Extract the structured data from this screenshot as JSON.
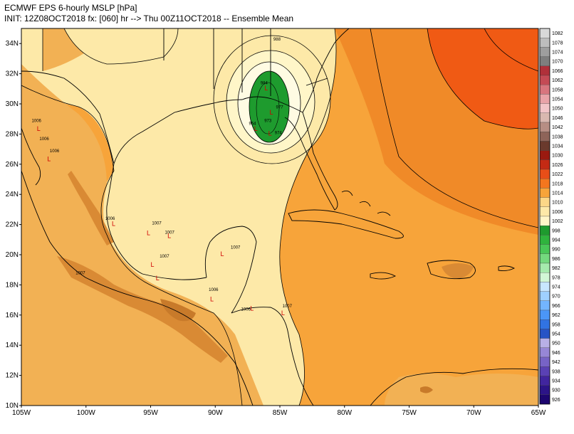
{
  "header": {
    "title": "ECMWF EPS 6-hourly MSLP [hPa]",
    "subtitle": "INIT: 12Z08OCT2018 fx: [060] hr --> Thu 00Z11OCT2018 -- Ensemble Mean"
  },
  "map": {
    "lat_labels": [
      "34N",
      "32N",
      "30N",
      "28N",
      "26N",
      "24N",
      "22N",
      "20N",
      "18N",
      "16N",
      "14N",
      "12N",
      "10N"
    ],
    "lon_labels": [
      "105W",
      "100W",
      "95W",
      "90W",
      "85W",
      "80W",
      "75W",
      "70W",
      "65W"
    ],
    "colors": {
      "land_orange": "#f2b154",
      "ocean_light": "#fde9a8",
      "pale": "#fff6c8",
      "gulf_orange": "#f7a43a",
      "deep_orange": "#f07e1f",
      "red_orange": "#f05a14",
      "low_green": "#1e9b2e",
      "terrain_brown": "#d98a34"
    }
  },
  "colorbar": {
    "levels": [
      "1082",
      "1078",
      "1074",
      "1070",
      "1066",
      "1062",
      "1058",
      "1054",
      "1050",
      "1046",
      "1042",
      "1038",
      "1034",
      "1030",
      "1026",
      "1022",
      "1018",
      "1014",
      "1010",
      "1006",
      "1002",
      "998",
      "994",
      "990",
      "986",
      "982",
      "978",
      "974",
      "970",
      "966",
      "962",
      "958",
      "954",
      "950",
      "946",
      "942",
      "938",
      "934",
      "930",
      "926"
    ],
    "colors": [
      "#d9d9d9",
      "#bdbdbd",
      "#9e9e9e",
      "#7e7e7e",
      "#b0303a",
      "#c44a55",
      "#d8757e",
      "#e9a3a8",
      "#f2c5c8",
      "#d9b8b0",
      "#b78e84",
      "#8e6459",
      "#6a3a2d",
      "#9a1a10",
      "#c42a14",
      "#e84e18",
      "#f4761e",
      "#f7a43a",
      "#fcd787",
      "#fde9a8",
      "#fff6c8",
      "#1e9b2e",
      "#2fb43d",
      "#49c757",
      "#74d97e",
      "#a6eaad",
      "#d2f6d6",
      "#c8e6ff",
      "#9fd0ff",
      "#73b5ff",
      "#4b96f7",
      "#3173e2",
      "#2754c6",
      "#b8b0e6",
      "#9787d6",
      "#7763c6",
      "#5a41b4",
      "#41259f",
      "#2c1488",
      "#1d0670"
    ]
  },
  "pressure_labels": [
    {
      "text": "1006",
      "lon": -104.2,
      "lat": 28.8
    },
    {
      "text": "1006",
      "lon": -103.6,
      "lat": 27.6
    },
    {
      "text": "1006",
      "lon": -102.8,
      "lat": 26.8
    },
    {
      "text": "1006",
      "lon": -98.5,
      "lat": 22.3
    },
    {
      "text": "1007",
      "lon": -94.9,
      "lat": 22.0
    },
    {
      "text": "1007",
      "lon": -93.9,
      "lat": 21.4
    },
    {
      "text": "1007",
      "lon": -94.3,
      "lat": 19.8
    },
    {
      "text": "1007",
      "lon": -100.8,
      "lat": 18.7
    },
    {
      "text": "1007",
      "lon": -88.8,
      "lat": 20.4
    },
    {
      "text": "1006",
      "lon": -90.5,
      "lat": 17.6
    },
    {
      "text": "1007",
      "lon": -84.8,
      "lat": 16.5
    },
    {
      "text": "1006",
      "lon": -88.0,
      "lat": 16.3
    },
    {
      "text": "988",
      "lon": -85.5,
      "lat": 34.2
    },
    {
      "text": "984",
      "lon": -86.5,
      "lat": 31.3
    },
    {
      "text": "977",
      "lon": -85.3,
      "lat": 29.7
    },
    {
      "text": "973",
      "lon": -86.2,
      "lat": 28.8
    },
    {
      "text": "974",
      "lon": -85.4,
      "lat": 28.0
    },
    {
      "text": "954",
      "lon": -87.4,
      "lat": 28.6
    }
  ],
  "low_marks": [
    {
      "lon": -103.8,
      "lat": 28.2
    },
    {
      "lon": -103.0,
      "lat": 26.2
    },
    {
      "lon": -98.0,
      "lat": 21.9
    },
    {
      "lon": -95.3,
      "lat": 21.3
    },
    {
      "lon": -93.7,
      "lat": 21.1
    },
    {
      "lon": -95.0,
      "lat": 19.2
    },
    {
      "lon": -94.6,
      "lat": 18.3
    },
    {
      "lon": -89.6,
      "lat": 19.9
    },
    {
      "lon": -90.4,
      "lat": 16.9
    },
    {
      "lon": -87.3,
      "lat": 16.3
    },
    {
      "lon": -84.9,
      "lat": 16.0
    },
    {
      "lon": -86.2,
      "lat": 30.9
    },
    {
      "lon": -85.8,
      "lat": 29.3
    },
    {
      "lon": -87.0,
      "lat": 28.2
    },
    {
      "lon": -85.9,
      "lat": 27.9
    }
  ]
}
